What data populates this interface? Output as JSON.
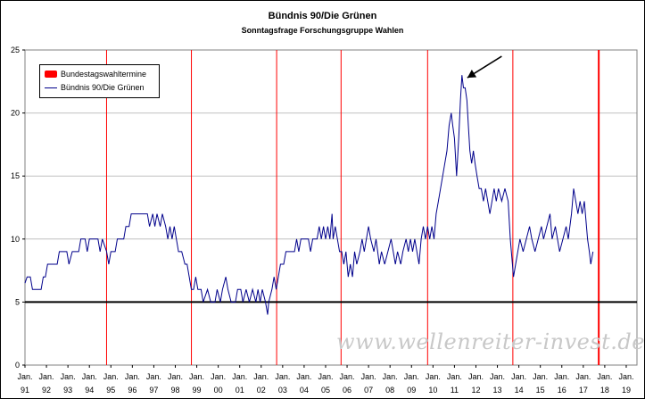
{
  "colors": {
    "series": "#00008b",
    "election_lines": "#ff0000",
    "reference_line": "#000000",
    "grid": "#c0c0c0"
  },
  "chart_data": {
    "type": "line",
    "title": "Bündnis 90/Die Grünen",
    "subtitle": "Sonntagsfrage Forschungsgruppe Wahlen",
    "xlabel": "",
    "ylabel": "",
    "ylim": [
      0,
      25
    ],
    "yticks": [
      0,
      5,
      10,
      15,
      20,
      25
    ],
    "xlim": [
      1991.0,
      2019.5
    ],
    "xticks": [
      {
        "top": "Jan.",
        "bottom": "91",
        "value": 1991.0
      },
      {
        "top": "Jan.",
        "bottom": "92",
        "value": 1992.0
      },
      {
        "top": "Jan.",
        "bottom": "93",
        "value": 1993.0
      },
      {
        "top": "Jan.",
        "bottom": "94",
        "value": 1994.0
      },
      {
        "top": "Jan.",
        "bottom": "95",
        "value": 1995.0
      },
      {
        "top": "Jan.",
        "bottom": "96",
        "value": 1996.0
      },
      {
        "top": "Jan.",
        "bottom": "97",
        "value": 1997.0
      },
      {
        "top": "Jan.",
        "bottom": "98",
        "value": 1998.0
      },
      {
        "top": "Jan.",
        "bottom": "99",
        "value": 1999.0
      },
      {
        "top": "Jan.",
        "bottom": "00",
        "value": 2000.0
      },
      {
        "top": "Jan.",
        "bottom": "01",
        "value": 2001.0
      },
      {
        "top": "Jan.",
        "bottom": "02",
        "value": 2002.0
      },
      {
        "top": "Jan.",
        "bottom": "03",
        "value": 2003.0
      },
      {
        "top": "Jan.",
        "bottom": "04",
        "value": 2004.0
      },
      {
        "top": "Jan.",
        "bottom": "05",
        "value": 2005.0
      },
      {
        "top": "Jan.",
        "bottom": "06",
        "value": 2006.0
      },
      {
        "top": "Jan.",
        "bottom": "07",
        "value": 2007.0
      },
      {
        "top": "Jan.",
        "bottom": "08",
        "value": 2008.0
      },
      {
        "top": "Jan.",
        "bottom": "09",
        "value": 2009.0
      },
      {
        "top": "Jan.",
        "bottom": "10",
        "value": 2010.0
      },
      {
        "top": "Jan.",
        "bottom": "11",
        "value": 2011.0
      },
      {
        "top": "Jan.",
        "bottom": "12",
        "value": 2012.0
      },
      {
        "top": "Jan.",
        "bottom": "13",
        "value": 2013.0
      },
      {
        "top": "Jan.",
        "bottom": "14",
        "value": 2014.0
      },
      {
        "top": "Jan.",
        "bottom": "15",
        "value": 2015.0
      },
      {
        "top": "Jan.",
        "bottom": "16",
        "value": 2016.0
      },
      {
        "top": "Jan.",
        "bottom": "17",
        "value": 2017.0
      },
      {
        "top": "Jan.",
        "bottom": "18",
        "value": 2018.0
      },
      {
        "top": "Jan.",
        "bottom": "19",
        "value": 2019.0
      }
    ],
    "grid": "horizontal",
    "legend_position": "top-left",
    "reference_line": {
      "y": 5
    },
    "election_dates": [
      {
        "x": 1994.8
      },
      {
        "x": 1998.75
      },
      {
        "x": 2002.72
      },
      {
        "x": 2005.72
      },
      {
        "x": 2009.75
      },
      {
        "x": 2013.72
      },
      {
        "x": 2017.72
      }
    ],
    "legend": [
      {
        "label": "Bundestagswahltermine",
        "kind": "election_lines"
      },
      {
        "label": "Bündnis 90/Die Grünen",
        "kind": "series"
      }
    ],
    "annotation": {
      "type": "arrow",
      "from": [
        2013.2,
        24.5
      ],
      "to": [
        2011.6,
        22.8
      ]
    },
    "series": [
      {
        "name": "Bündnis 90/Die Grünen",
        "points": [
          [
            1991.0,
            6.5
          ],
          [
            1991.1,
            7
          ],
          [
            1991.25,
            7
          ],
          [
            1991.35,
            6
          ],
          [
            1991.75,
            6
          ],
          [
            1991.85,
            7
          ],
          [
            1991.95,
            7
          ],
          [
            1992.05,
            8
          ],
          [
            1992.5,
            8
          ],
          [
            1992.6,
            9
          ],
          [
            1992.95,
            9
          ],
          [
            1993.05,
            8
          ],
          [
            1993.2,
            9
          ],
          [
            1993.5,
            9
          ],
          [
            1993.6,
            10
          ],
          [
            1993.8,
            10
          ],
          [
            1993.9,
            9
          ],
          [
            1994.0,
            10
          ],
          [
            1994.4,
            10
          ],
          [
            1994.5,
            9
          ],
          [
            1994.6,
            10
          ],
          [
            1994.8,
            9
          ],
          [
            1994.9,
            8
          ],
          [
            1995.0,
            9
          ],
          [
            1995.2,
            9
          ],
          [
            1995.3,
            10
          ],
          [
            1995.6,
            10
          ],
          [
            1995.7,
            11
          ],
          [
            1995.85,
            11
          ],
          [
            1995.95,
            12
          ],
          [
            1996.7,
            12
          ],
          [
            1996.8,
            11
          ],
          [
            1996.95,
            12
          ],
          [
            1997.05,
            11
          ],
          [
            1997.15,
            12
          ],
          [
            1997.3,
            11
          ],
          [
            1997.4,
            12
          ],
          [
            1997.55,
            11
          ],
          [
            1997.65,
            10
          ],
          [
            1997.75,
            11
          ],
          [
            1997.85,
            10
          ],
          [
            1997.95,
            11
          ],
          [
            1998.05,
            10
          ],
          [
            1998.15,
            9
          ],
          [
            1998.3,
            9
          ],
          [
            1998.45,
            8
          ],
          [
            1998.55,
            8
          ],
          [
            1998.65,
            7
          ],
          [
            1998.75,
            6
          ],
          [
            1998.85,
            6
          ],
          [
            1998.95,
            7
          ],
          [
            1999.05,
            6
          ],
          [
            1999.2,
            6
          ],
          [
            1999.3,
            5
          ],
          [
            1999.5,
            6
          ],
          [
            1999.65,
            5
          ],
          [
            1999.85,
            5
          ],
          [
            1999.95,
            6
          ],
          [
            2000.1,
            5
          ],
          [
            2000.2,
            6
          ],
          [
            2000.35,
            7
          ],
          [
            2000.45,
            6
          ],
          [
            2000.6,
            5
          ],
          [
            2000.8,
            5
          ],
          [
            2000.9,
            6
          ],
          [
            2001.05,
            6
          ],
          [
            2001.15,
            5
          ],
          [
            2001.3,
            6
          ],
          [
            2001.45,
            5
          ],
          [
            2001.6,
            6
          ],
          [
            2001.75,
            5
          ],
          [
            2001.85,
            6
          ],
          [
            2001.95,
            5
          ],
          [
            2002.05,
            6
          ],
          [
            2002.2,
            5
          ],
          [
            2002.3,
            4
          ],
          [
            2002.35,
            5
          ],
          [
            2002.5,
            6
          ],
          [
            2002.6,
            7
          ],
          [
            2002.7,
            6
          ],
          [
            2002.8,
            7
          ],
          [
            2002.9,
            8
          ],
          [
            2003.05,
            8
          ],
          [
            2003.15,
            9
          ],
          [
            2003.55,
            9
          ],
          [
            2003.65,
            10
          ],
          [
            2003.75,
            9
          ],
          [
            2003.85,
            10
          ],
          [
            2004.2,
            10
          ],
          [
            2004.3,
            9
          ],
          [
            2004.4,
            10
          ],
          [
            2004.6,
            10
          ],
          [
            2004.7,
            11
          ],
          [
            2004.8,
            10
          ],
          [
            2004.9,
            11
          ],
          [
            2005.0,
            10
          ],
          [
            2005.1,
            11
          ],
          [
            2005.2,
            10
          ],
          [
            2005.3,
            12
          ],
          [
            2005.35,
            10
          ],
          [
            2005.45,
            11
          ],
          [
            2005.55,
            10
          ],
          [
            2005.65,
            9
          ],
          [
            2005.75,
            9
          ],
          [
            2005.85,
            8
          ],
          [
            2005.95,
            9
          ],
          [
            2006.05,
            7
          ],
          [
            2006.15,
            8
          ],
          [
            2006.25,
            7
          ],
          [
            2006.35,
            9
          ],
          [
            2006.45,
            8
          ],
          [
            2006.6,
            9
          ],
          [
            2006.7,
            10
          ],
          [
            2006.8,
            9
          ],
          [
            2006.9,
            10
          ],
          [
            2007.0,
            11
          ],
          [
            2007.1,
            10
          ],
          [
            2007.25,
            9
          ],
          [
            2007.35,
            10
          ],
          [
            2007.5,
            8
          ],
          [
            2007.6,
            9
          ],
          [
            2007.75,
            8
          ],
          [
            2007.9,
            9
          ],
          [
            2008.05,
            10
          ],
          [
            2008.15,
            9
          ],
          [
            2008.25,
            8
          ],
          [
            2008.35,
            9
          ],
          [
            2008.5,
            8
          ],
          [
            2008.6,
            9
          ],
          [
            2008.75,
            10
          ],
          [
            2008.85,
            9
          ],
          [
            2008.95,
            10
          ],
          [
            2009.05,
            9
          ],
          [
            2009.15,
            10
          ],
          [
            2009.25,
            9
          ],
          [
            2009.35,
            8
          ],
          [
            2009.45,
            10
          ],
          [
            2009.55,
            11
          ],
          [
            2009.65,
            10
          ],
          [
            2009.75,
            11
          ],
          [
            2009.85,
            10
          ],
          [
            2009.95,
            11
          ],
          [
            2010.05,
            10
          ],
          [
            2010.15,
            12
          ],
          [
            2010.25,
            13
          ],
          [
            2010.35,
            14
          ],
          [
            2010.45,
            15
          ],
          [
            2010.55,
            16
          ],
          [
            2010.65,
            17
          ],
          [
            2010.75,
            19
          ],
          [
            2010.85,
            20
          ],
          [
            2010.92,
            19
          ],
          [
            2011.0,
            18
          ],
          [
            2011.1,
            15
          ],
          [
            2011.2,
            18
          ],
          [
            2011.28,
            21
          ],
          [
            2011.35,
            23
          ],
          [
            2011.42,
            22
          ],
          [
            2011.5,
            22
          ],
          [
            2011.58,
            21
          ],
          [
            2011.65,
            19
          ],
          [
            2011.72,
            17
          ],
          [
            2011.8,
            16
          ],
          [
            2011.88,
            17
          ],
          [
            2011.96,
            16
          ],
          [
            2012.05,
            15
          ],
          [
            2012.15,
            14
          ],
          [
            2012.25,
            14
          ],
          [
            2012.35,
            13
          ],
          [
            2012.45,
            14
          ],
          [
            2012.55,
            13
          ],
          [
            2012.65,
            12
          ],
          [
            2012.75,
            13
          ],
          [
            2012.85,
            14
          ],
          [
            2012.95,
            13
          ],
          [
            2013.05,
            14
          ],
          [
            2013.2,
            13
          ],
          [
            2013.35,
            14
          ],
          [
            2013.5,
            13
          ],
          [
            2013.6,
            10
          ],
          [
            2013.7,
            8
          ],
          [
            2013.75,
            7
          ],
          [
            2013.85,
            8
          ],
          [
            2013.95,
            9
          ],
          [
            2014.05,
            10
          ],
          [
            2014.2,
            9
          ],
          [
            2014.35,
            10
          ],
          [
            2014.5,
            11
          ],
          [
            2014.6,
            10
          ],
          [
            2014.75,
            9
          ],
          [
            2014.9,
            10
          ],
          [
            2015.05,
            11
          ],
          [
            2015.15,
            10
          ],
          [
            2015.3,
            11
          ],
          [
            2015.45,
            12
          ],
          [
            2015.55,
            10
          ],
          [
            2015.7,
            11
          ],
          [
            2015.8,
            10
          ],
          [
            2015.9,
            9
          ],
          [
            2016.05,
            10
          ],
          [
            2016.2,
            11
          ],
          [
            2016.3,
            10
          ],
          [
            2016.45,
            12
          ],
          [
            2016.55,
            14
          ],
          [
            2016.65,
            13
          ],
          [
            2016.75,
            12
          ],
          [
            2016.85,
            13
          ],
          [
            2016.95,
            12
          ],
          [
            2017.05,
            13
          ],
          [
            2017.15,
            11
          ],
          [
            2017.2,
            10
          ],
          [
            2017.28,
            9
          ],
          [
            2017.35,
            8
          ],
          [
            2017.45,
            9
          ]
        ]
      }
    ]
  },
  "watermark": "www.wellenreiter-invest.de"
}
